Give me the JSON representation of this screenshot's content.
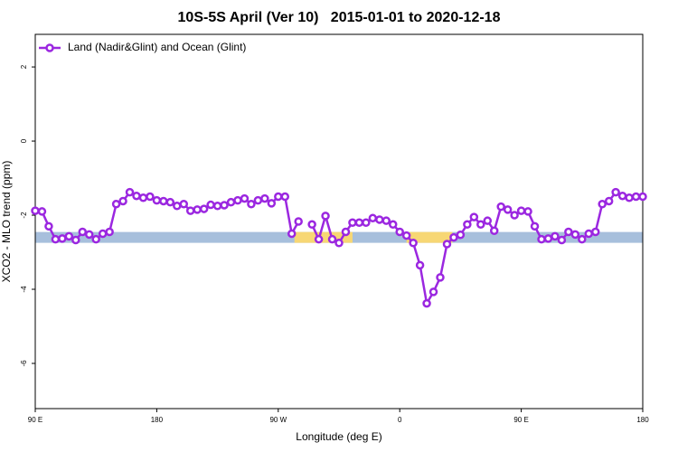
{
  "chart_data": {
    "type": "line",
    "title": "10S-5S April (Ver 10)   2015-01-01 to 2020-12-18",
    "x_label": "Longitude (deg E)",
    "y_label": "XCO2 - MLO trend (ppm)",
    "xlim": [
      90,
      540
    ],
    "ylim": [
      -7.22,
      2.88
    ],
    "xticks": [
      {
        "value": 90,
        "label": "90 E"
      },
      180,
      {
        "value": 270,
        "label": "90 W"
      },
      {
        "value": 360,
        "label": "0"
      },
      {
        "value": 450,
        "label": "90 E"
      },
      {
        "value": 540,
        "label": "180"
      }
    ],
    "yticks": [
      2,
      0,
      -2,
      -4,
      -6
    ],
    "legend": "top-left",
    "band": {
      "y": -2.6,
      "color": "#a7bfdc",
      "land_color": "#f7d774",
      "land": [
        [
          282,
          325
        ],
        [
          365,
          399
        ]
      ]
    },
    "x": [
      90,
      95,
      100,
      105,
      110,
      115,
      120,
      125,
      130,
      135,
      140,
      145,
      150,
      155,
      160,
      165,
      170,
      175,
      180,
      185,
      190,
      195,
      200,
      205,
      210,
      215,
      220,
      225,
      230,
      235,
      240,
      245,
      250,
      255,
      260,
      265,
      270,
      275,
      280,
      285,
      290,
      295,
      300,
      305,
      310,
      315,
      320,
      325,
      330,
      335,
      340,
      345,
      350,
      355,
      360,
      365,
      370,
      375,
      380,
      385,
      390,
      395,
      400,
      405,
      410,
      415,
      420,
      425,
      430,
      435,
      440,
      445,
      450,
      455,
      460,
      465,
      470,
      475,
      480,
      485,
      490,
      495,
      500,
      505,
      510,
      515,
      520,
      525,
      530,
      535,
      540
    ],
    "series": [
      {
        "name": "Land (Nadir&Glint) and Ocean (Glint)",
        "color": "#9b27e0",
        "values": [
          -1.88,
          -1.9,
          -2.3,
          -2.65,
          -2.63,
          -2.57,
          -2.67,
          -2.45,
          -2.52,
          -2.65,
          -2.5,
          -2.45,
          -1.7,
          -1.62,
          -1.38,
          -1.48,
          -1.53,
          -1.5,
          -1.6,
          -1.62,
          -1.65,
          -1.75,
          -1.7,
          -1.88,
          -1.85,
          -1.83,
          -1.72,
          -1.75,
          -1.73,
          -1.65,
          -1.6,
          -1.55,
          -1.7,
          -1.6,
          -1.55,
          -1.68,
          -1.5,
          -1.5,
          -2.5,
          -2.17,
          null,
          -2.25,
          -2.65,
          -2.02,
          -2.65,
          -2.75,
          -2.45,
          -2.2,
          -2.2,
          -2.2,
          -2.08,
          -2.12,
          -2.15,
          -2.25,
          -2.45,
          -2.55,
          -2.75,
          -3.35,
          -4.38,
          -4.07,
          -3.68,
          -2.78,
          -2.6,
          -2.53,
          -2.25,
          -2.05,
          -2.25,
          -2.15,
          -2.42,
          -1.77,
          -1.85,
          -2.0,
          -1.88,
          -1.9,
          -2.3,
          -2.65,
          -2.63,
          -2.57,
          -2.67,
          -2.45,
          -2.52,
          -2.65,
          -2.5,
          -2.45,
          -1.7,
          -1.62,
          -1.38,
          -1.48,
          -1.53,
          -1.5,
          -1.5
        ]
      }
    ]
  }
}
